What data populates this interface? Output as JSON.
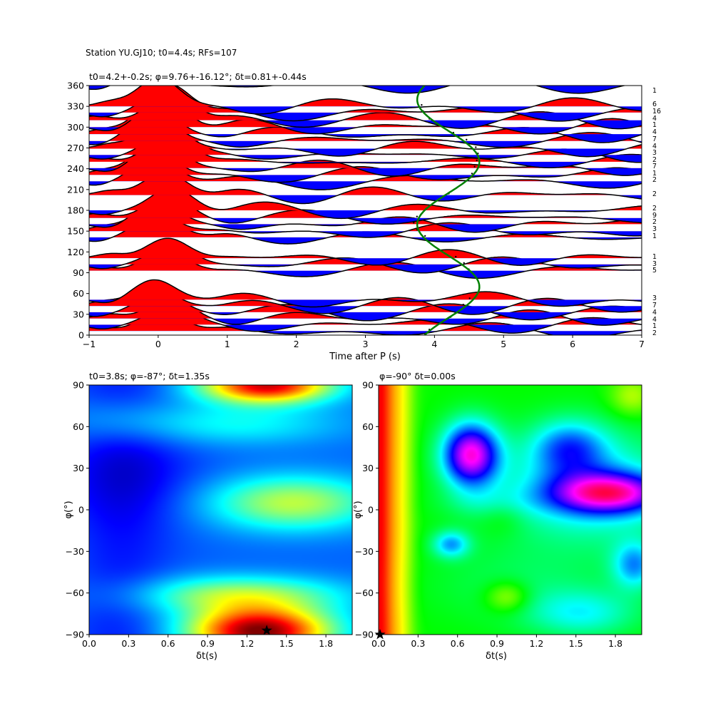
{
  "figure_title": "Station YU.GJ10; t0=4.4s; RFs=107",
  "chart_data": [
    {
      "type": "line",
      "title": "t0=4.2+-0.2s; φ=9.76+-16.12°; δt=0.81+-0.44s",
      "xlabel": "Time after P (s)",
      "ylabel": "",
      "xlim": [
        -1,
        7
      ],
      "ylim": [
        0,
        360
      ],
      "xticks": [
        -1,
        0,
        1,
        2,
        3,
        4,
        5,
        6,
        7
      ],
      "yticks": [
        0,
        30,
        60,
        90,
        120,
        150,
        180,
        210,
        240,
        270,
        300,
        330,
        360
      ],
      "trace_baz": [
        6,
        15,
        24,
        33,
        42,
        51,
        93,
        102,
        111,
        141,
        150,
        160,
        169,
        180,
        202,
        222,
        231,
        241,
        250,
        260,
        269,
        280,
        290,
        300,
        310,
        321,
        330,
        360
      ],
      "trace_counts": [
        "2",
        "1",
        "4",
        "4",
        "7",
        "3",
        "5",
        "3",
        "1",
        "1",
        "3",
        "2",
        "9",
        "2",
        "2",
        "2",
        "1",
        "7",
        "2",
        "3",
        "4",
        "7",
        "4",
        "1",
        "4",
        "16",
        "6",
        "1"
      ],
      "positive_fill": "#ff0000",
      "negative_fill": "#0000ff",
      "t0_curve_color": "#008000",
      "t0_curve": {
        "mean": 4.2,
        "amplitude": 0.45,
        "phase_deg": 9.76,
        "period_deg": 180
      }
    },
    {
      "type": "heatmap",
      "title": "t0=3.8s; φ=-87°; δt=1.35s",
      "xlabel": "δt(s)",
      "ylabel": "φ(°)",
      "xlim": [
        0,
        2
      ],
      "ylim": [
        -90,
        90
      ],
      "xticks": [
        "0.0",
        "0.3",
        "0.6",
        "0.9",
        "1.2",
        "1.5",
        "1.8"
      ],
      "yticks": [
        "90",
        "60",
        "30",
        "0",
        "−30",
        "−60",
        "−90"
      ],
      "colormap": "jet",
      "best": {
        "dt": 1.35,
        "phi": -87
      }
    },
    {
      "type": "heatmap",
      "title": "φ=-90° δt=0.00s",
      "xlabel": "δt(s)",
      "ylabel": "φ(°)",
      "xlim": [
        0,
        2
      ],
      "ylim": [
        -90,
        90
      ],
      "xticks": [
        "0.0",
        "0.3",
        "0.6",
        "0.9",
        "1.2",
        "1.5",
        "1.8"
      ],
      "yticks": [
        "90",
        "60",
        "30",
        "0",
        "−30",
        "−60",
        "−90"
      ],
      "colormap": "hsv",
      "best": {
        "dt": 0.0,
        "phi": -90
      }
    }
  ]
}
